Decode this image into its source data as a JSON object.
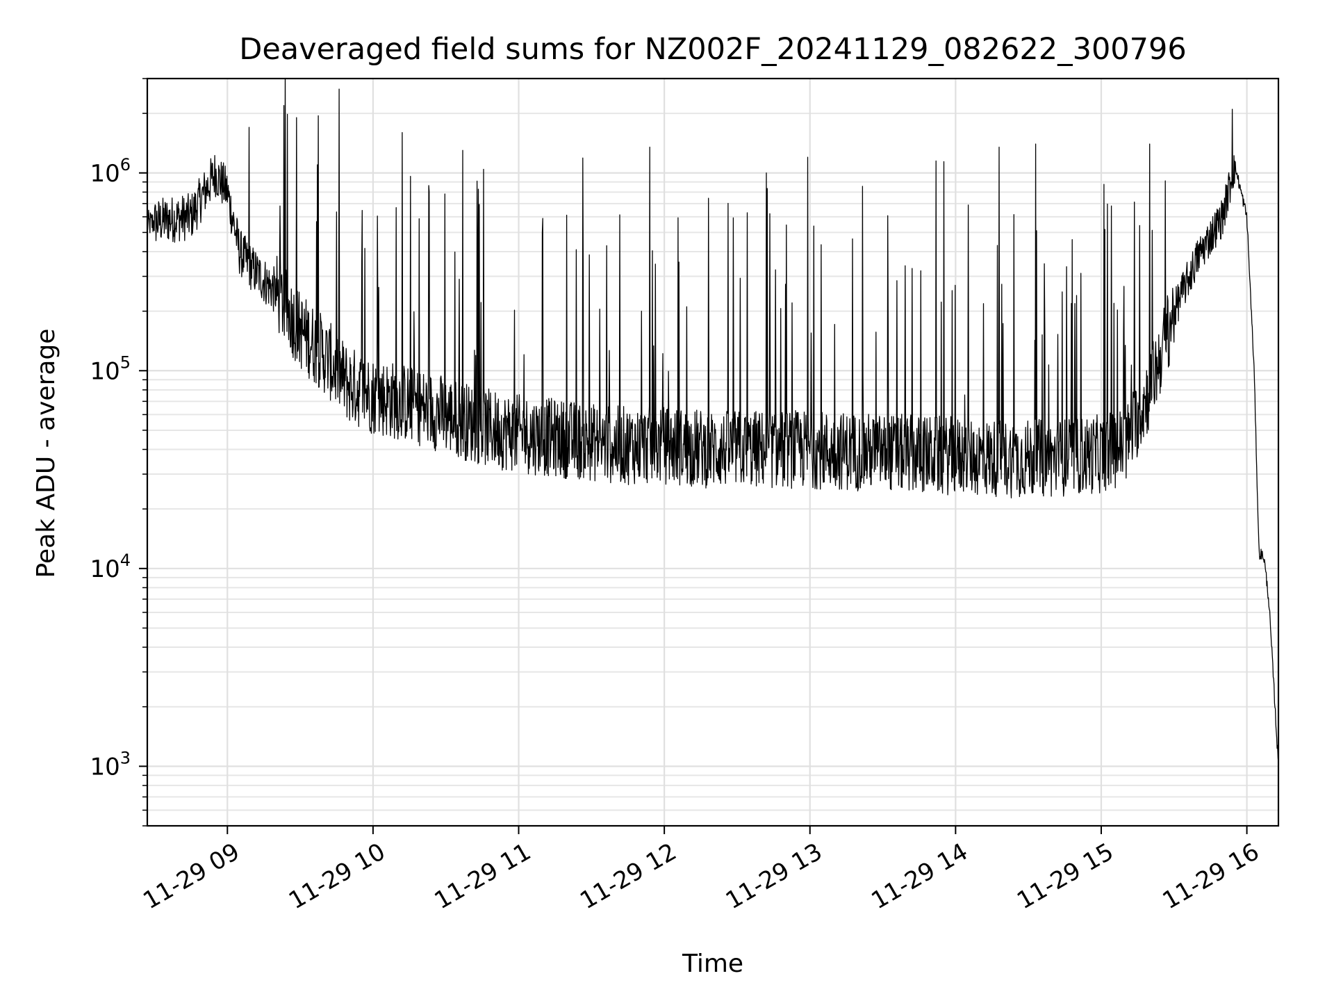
{
  "chart_data": {
    "type": "line",
    "title": "Deaveraged field sums for NZ002F_20241129_082622_300796",
    "xlabel": "Time",
    "ylabel": "Peak ADU - average",
    "yscale": "log",
    "ylim": [
      500,
      3000000
    ],
    "xlim": [
      "11-29 08:27",
      "11-29 16:13"
    ],
    "grid": true,
    "line_color": "#000000",
    "x_ticks": [
      {
        "time": "11-29 09:00",
        "label": "11-29 09"
      },
      {
        "time": "11-29 10:00",
        "label": "11-29 10"
      },
      {
        "time": "11-29 11:00",
        "label": "11-29 11"
      },
      {
        "time": "11-29 12:00",
        "label": "11-29 12"
      },
      {
        "time": "11-29 13:00",
        "label": "11-29 13"
      },
      {
        "time": "11-29 14:00",
        "label": "11-29 14"
      },
      {
        "time": "11-29 15:00",
        "label": "11-29 15"
      },
      {
        "time": "11-29 16:00",
        "label": "11-29 16"
      }
    ],
    "y_ticks": [
      {
        "value": 1000,
        "base": "10",
        "exp": "3"
      },
      {
        "value": 10000,
        "base": "10",
        "exp": "4"
      },
      {
        "value": 100000,
        "base": "10",
        "exp": "5"
      },
      {
        "value": 1000000,
        "base": "10",
        "exp": "6"
      }
    ],
    "series": [
      {
        "x": [
          "11-29 08:27",
          "11-29 08:35",
          "11-29 08:45",
          "11-29 08:55",
          "11-29 09:00",
          "11-29 09:05",
          "11-29 09:10",
          "11-29 09:20",
          "11-29 09:30",
          "11-29 09:40",
          "11-29 09:50",
          "11-29 10:00",
          "11-29 10:15",
          "11-29 10:30",
          "11-29 10:45",
          "11-29 11:00",
          "11-29 11:20",
          "11-29 11:40",
          "11-29 12:00",
          "11-29 12:20",
          "11-29 12:40",
          "11-29 13:00",
          "11-29 13:20",
          "11-29 13:40",
          "11-29 14:00",
          "11-29 14:20",
          "11-29 14:40",
          "11-29 15:00",
          "11-29 15:10",
          "11-29 15:20",
          "11-29 15:30",
          "11-29 15:40",
          "11-29 15:50",
          "11-29 15:55",
          "11-29 16:00",
          "11-29 16:03",
          "11-29 16:05",
          "11-29 16:07",
          "11-29 16:09",
          "11-29 16:11",
          "11-29 16:13"
        ],
        "y": [
          550000,
          580000,
          600000,
          1000000,
          800000,
          400000,
          330000,
          250000,
          160000,
          120000,
          85000,
          75000,
          68000,
          60000,
          52000,
          48000,
          45000,
          42000,
          42000,
          40000,
          40000,
          40000,
          39000,
          38000,
          37000,
          36000,
          36000,
          38000,
          42000,
          80000,
          200000,
          380000,
          600000,
          1100000,
          600000,
          100000,
          12000,
          11500,
          7000,
          2700,
          1000
        ],
        "spikes": [
          {
            "x": "11-29 09:09",
            "y": 1700000
          },
          {
            "x": "11-29 09:37",
            "y": 1100000
          },
          {
            "x": "11-29 10:12",
            "y": 1600000
          },
          {
            "x": "11-29 10:37",
            "y": 1300000
          },
          {
            "x": "11-29 11:54",
            "y": 1350000
          },
          {
            "x": "11-29 12:42",
            "y": 1000000
          },
          {
            "x": "11-29 12:59",
            "y": 1200000
          },
          {
            "x": "11-29 13:52",
            "y": 1150000
          },
          {
            "x": "11-29 14:18",
            "y": 1350000
          },
          {
            "x": "11-29 14:33",
            "y": 1400000
          },
          {
            "x": "11-29 15:20",
            "y": 1400000
          },
          {
            "x": "11-29 15:54",
            "y": 2100000
          }
        ]
      }
    ]
  }
}
